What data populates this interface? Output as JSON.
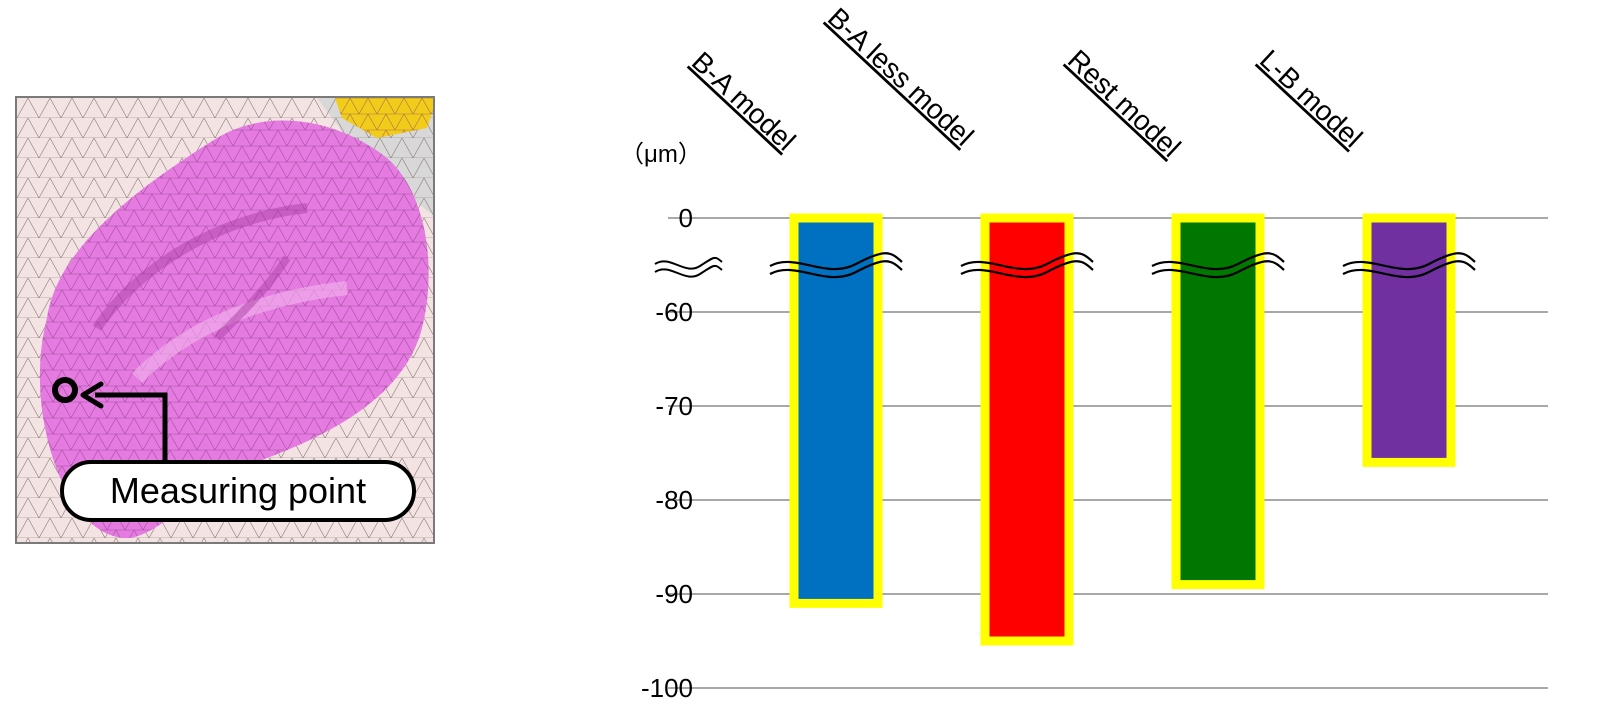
{
  "annotation": {
    "label": "Measuring point"
  },
  "chart_data": {
    "type": "bar",
    "unit_label": "（μm）",
    "categories": [
      "B-A  model",
      "B-A less  model",
      "Rest  model",
      "L-B  model"
    ],
    "values": [
      -91,
      -95,
      -89,
      -76
    ],
    "colors": [
      "#0070c0",
      "#ff0000",
      "#007800",
      "#7030a0"
    ],
    "outline_color": "#ffff00",
    "y_ticks": [
      0,
      -60,
      -70,
      -80,
      -90,
      -100
    ],
    "ylim": [
      -100,
      0
    ],
    "axis_break": "between 0 and -60",
    "grid": true,
    "legend": "none"
  }
}
